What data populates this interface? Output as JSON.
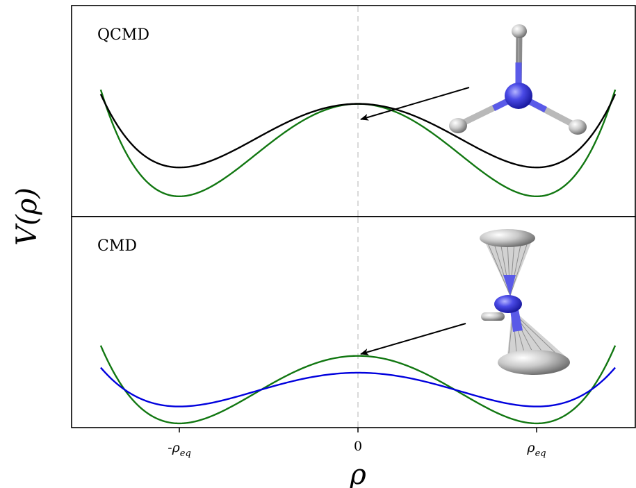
{
  "figure": {
    "ylabel": "V(ρ)",
    "xlabel": "ρ"
  },
  "chart_data": [
    {
      "type": "line",
      "panel_label": "QCMD",
      "xlim": [
        -1.45,
        1.45
      ],
      "ylim": [
        -0.35,
        3.3
      ],
      "xticks": [
        {
          "value": -1,
          "label": "-ρeq"
        },
        {
          "value": 0,
          "label": "0"
        },
        {
          "value": 1,
          "label": "ρeq"
        }
      ],
      "grid": false,
      "reference_line": {
        "x": 0,
        "style": "dashed",
        "color": "#d9d9d9"
      },
      "series": [
        {
          "color": "#117711",
          "function": "double-well",
          "x_range": [
            -1.44,
            1.44
          ],
          "barrier": 1.6,
          "well_depth": 0
        },
        {
          "color": "#000000",
          "function": "double-well (quantum-corrected)",
          "x_range": [
            -1.44,
            1.44
          ],
          "barrier": 1.6,
          "well_depth": 0.5
        }
      ],
      "annotation": {
        "type": "arrow",
        "target_x": 0,
        "target": "barrier top",
        "image": "NH3 molecule, planar transition state"
      }
    },
    {
      "type": "line",
      "panel_label": "CMD",
      "xlim": [
        -1.45,
        1.45
      ],
      "ylim": [
        -0.1,
        4.9
      ],
      "xticks": [
        {
          "value": -1,
          "label": "-ρeq"
        },
        {
          "value": 0,
          "label": "0"
        },
        {
          "value": 1,
          "label": "ρeq"
        }
      ],
      "grid": false,
      "reference_line": {
        "x": 0,
        "style": "dashed",
        "color": "#d9d9d9"
      },
      "series": [
        {
          "color": "#117711",
          "function": "double-well",
          "x_range": [
            -1.44,
            1.44
          ],
          "barrier": 1.6,
          "well_depth": 0
        },
        {
          "color": "#0000dd",
          "function": "double-well (centroid)",
          "x_range": [
            -1.44,
            1.44
          ],
          "barrier": 1.2,
          "well_depth": 0.4
        }
      ],
      "annotation": {
        "type": "arrow",
        "target_x": 0,
        "target": "barrier top",
        "image": "NH3 molecule with collapsed ring-polymer beads"
      }
    }
  ]
}
